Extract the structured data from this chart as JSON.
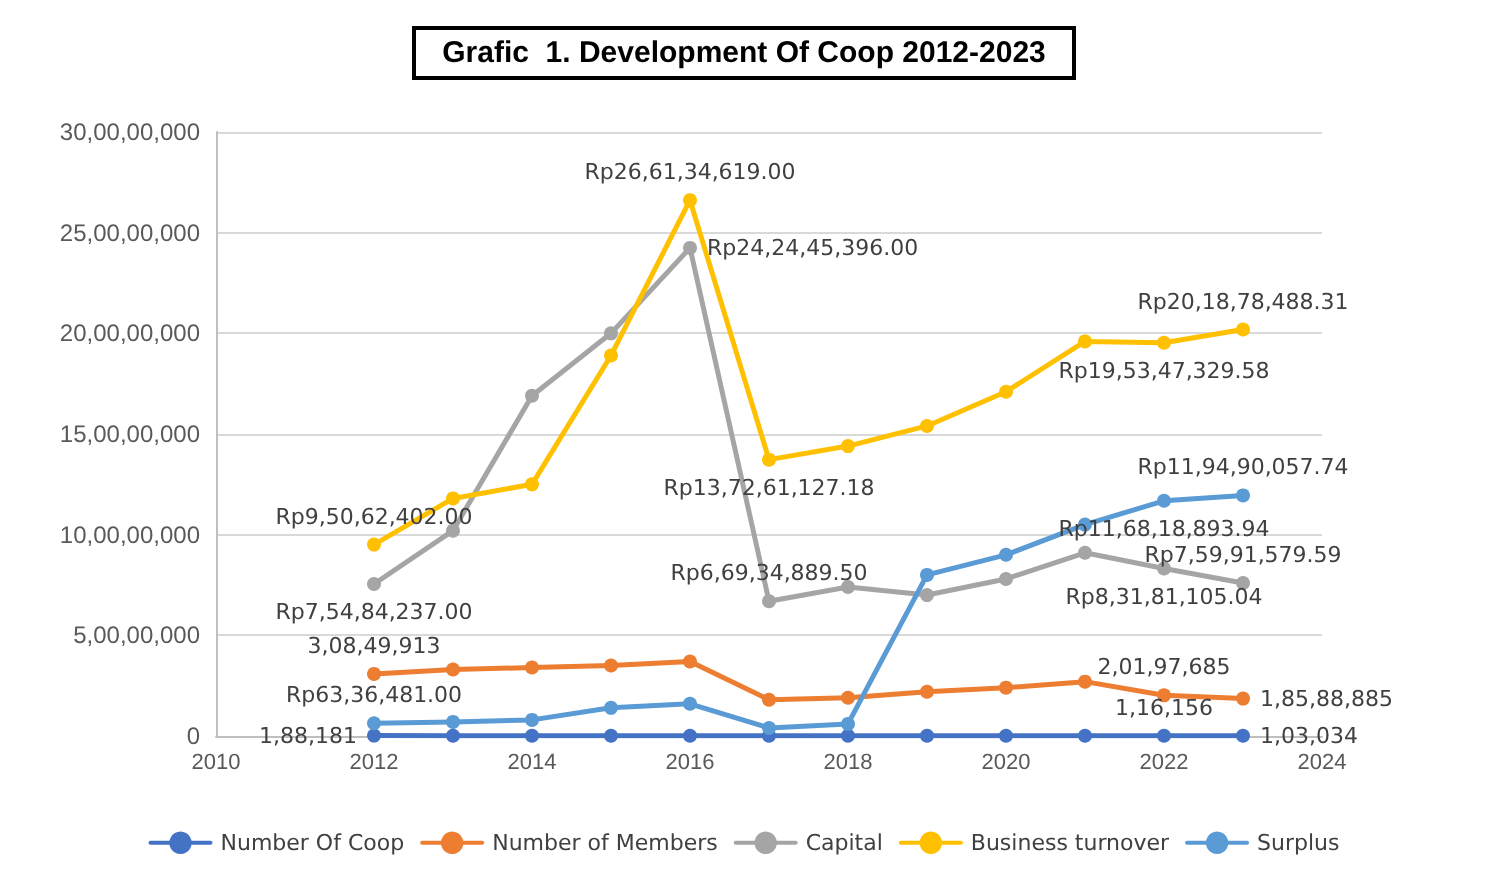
{
  "chart_data": {
    "type": "line",
    "title": "Grafic  1. Development Of Coop 2012-2023",
    "x": [
      2012,
      2013,
      2014,
      2015,
      2016,
      2017,
      2018,
      2019,
      2020,
      2021,
      2022,
      2023
    ],
    "xlim": [
      2010,
      2024
    ],
    "xticks": [
      2010,
      2012,
      2014,
      2016,
      2018,
      2020,
      2022,
      2024
    ],
    "ylim": [
      0,
      300000000
    ],
    "yticks": [
      {
        "value": 0,
        "label": "0"
      },
      {
        "value": 50000000,
        "label": "5,00,00,000"
      },
      {
        "value": 100000000,
        "label": "10,00,00,000"
      },
      {
        "value": 150000000,
        "label": "15,00,00,000"
      },
      {
        "value": 200000000,
        "label": "20,00,00,000"
      },
      {
        "value": 250000000,
        "label": "25,00,00,000"
      },
      {
        "value": 300000000,
        "label": "30,00,00,000"
      }
    ],
    "grid": "y",
    "legend": "bottom",
    "marker": "circle",
    "line_style": "solid",
    "series": [
      {
        "name": "Number Of Coop",
        "color": "#4472c4",
        "values": [
          188181,
          100000,
          100000,
          100000,
          100000,
          100000,
          100000,
          100000,
          100000,
          100000,
          116156,
          103034
        ],
        "value_labels": [
          "1,88,181",
          null,
          null,
          null,
          null,
          null,
          null,
          null,
          null,
          null,
          "1,16,156",
          "1,03,034"
        ]
      },
      {
        "name": "Number of Members",
        "color": "#ed7d31",
        "values": [
          30849913,
          33000000,
          34000000,
          35000000,
          37000000,
          18000000,
          19000000,
          22000000,
          24000000,
          27000000,
          20197685,
          18588885
        ],
        "value_labels": [
          "3,08,49,913",
          null,
          null,
          null,
          null,
          null,
          null,
          null,
          null,
          null,
          "2,01,97,685",
          "1,85,88,885"
        ]
      },
      {
        "name": "Capital",
        "color": "#a5a5a5",
        "values": [
          75484237,
          102000000,
          169000000,
          200000000,
          242445396,
          66934889.5,
          74000000,
          70000000,
          78000000,
          91000000,
          83181105.04,
          75991579.59
        ],
        "value_labels": [
          "Rp7,54,84,237.00",
          null,
          null,
          null,
          "Rp24,24,45,396.00",
          "Rp6,69,34,889.50",
          null,
          null,
          null,
          null,
          "Rp8,31,81,105.04",
          "Rp7,59,91,579.59"
        ]
      },
      {
        "name": "Business turnover",
        "color": "#ffc000",
        "values": [
          95062402,
          118000000,
          125000000,
          189000000,
          266134619,
          137261127.18,
          144000000,
          154000000,
          171000000,
          196000000,
          195347329.58,
          201878488.31
        ],
        "value_labels": [
          "Rp9,50,62,402.00",
          null,
          null,
          null,
          "Rp26,61,34,619.00",
          "Rp13,72,61,127.18",
          null,
          null,
          null,
          null,
          "Rp19,53,47,329.58",
          "Rp20,18,78,488.31"
        ]
      },
      {
        "name": "Surplus",
        "color": "#5b9bd5",
        "values": [
          6336481,
          7000000,
          8000000,
          14000000,
          16000000,
          4000000,
          6000000,
          80000000,
          90000000,
          105000000,
          116818893.94,
          119490057.74
        ],
        "value_labels": [
          "Rp63,36,481.00",
          null,
          null,
          null,
          null,
          null,
          null,
          null,
          null,
          null,
          "Rp11,68,18,893.94",
          "Rp11,94,90,057.74"
        ]
      }
    ]
  }
}
